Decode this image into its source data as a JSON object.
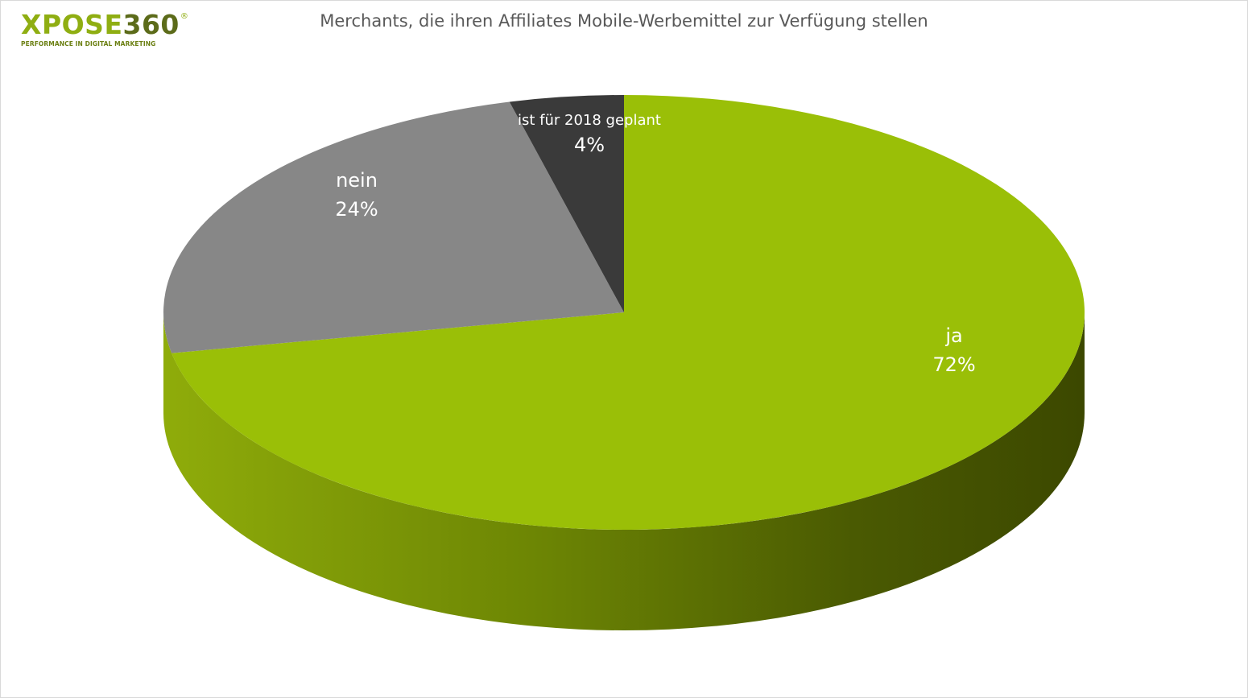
{
  "logo": {
    "brand_x": "XPOSE",
    "brand_num": "360",
    "reg": "®",
    "tagline": "PERFORMANCE IN DIGITAL MARKETING"
  },
  "chart_data": {
    "type": "pie",
    "title": "Merchants, die ihren Affiliates Mobile-Werbemittel zur Verfügung stellen",
    "categories": [
      "ja",
      "nein",
      "ist für 2018 geplant"
    ],
    "values": [
      72,
      24,
      4
    ],
    "labels": [
      "72%",
      "24%",
      "4%"
    ],
    "colors": [
      "#9abf07",
      "#878787",
      "#3a3a3a"
    ],
    "side_color": "#6f8a05",
    "legend": "none",
    "three_d": true
  }
}
